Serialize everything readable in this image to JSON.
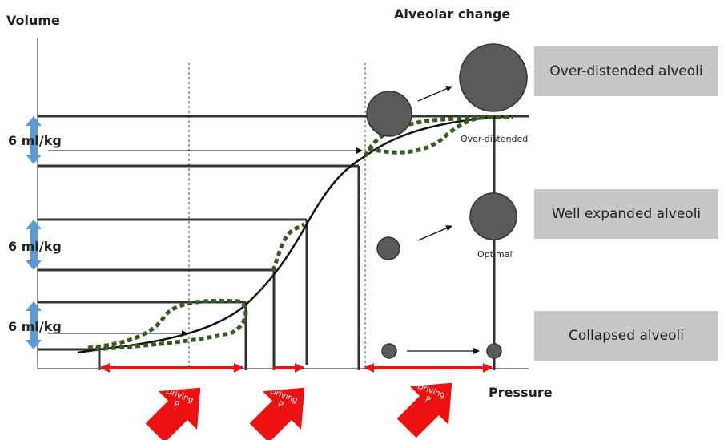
{
  "axes": {
    "y_title": "Volume",
    "x_title": "Pressure"
  },
  "alveolar_change_title": "Alveolar change",
  "volume_labels": [
    "6 ml/kg",
    "6 ml/kg",
    "6 ml/kg"
  ],
  "boxes": {
    "over_distended": "Over-distended alveoli",
    "well_expanded": "Well expanded alveoli",
    "collapsed": "Collapsed alveoli"
  },
  "small_labels": {
    "over_distended": "Over-distended",
    "optimal": "Optimal"
  },
  "driving_arrows": [
    {
      "line1": "Driving",
      "line2": "P"
    },
    {
      "line1": "Driving",
      "line2": "P"
    },
    {
      "line1": "Driving",
      "line2": "P"
    }
  ],
  "colors": {
    "curve": "#111111",
    "dashed_curve": "#3a5a24",
    "red": "#ee1111",
    "blue_arrow": "#5b9bd5",
    "alveolus": "#5a5a5a",
    "box": "#c7c7c7"
  },
  "icons": {
    "driving_arrow": "up-right-arrow-icon",
    "volume_arrow": "double-vertical-arrow-icon"
  }
}
